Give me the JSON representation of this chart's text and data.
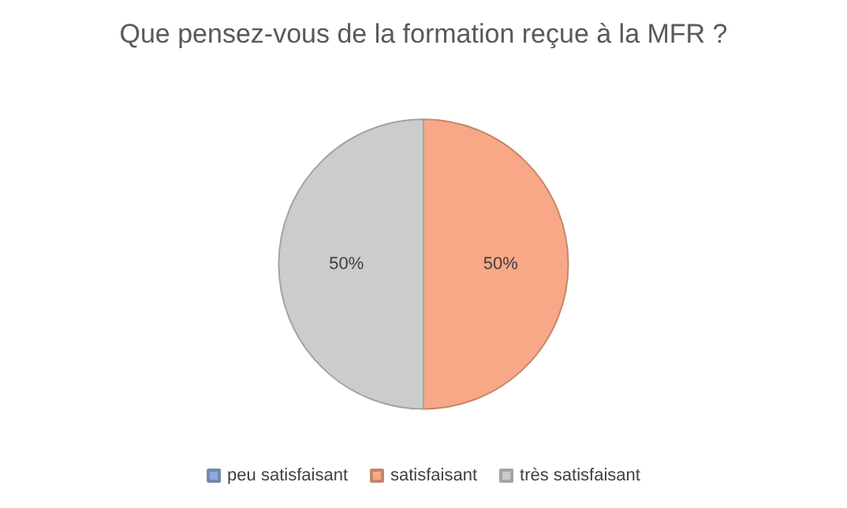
{
  "chart_data": {
    "type": "pie",
    "title": "Que pensez-vous de la formation reçue à la MFR ?",
    "categories": [
      "peu satisfaisant",
      "satisfaisant",
      "très satisfaisant"
    ],
    "values": [
      0,
      50,
      50
    ],
    "colors": [
      "#8faadc",
      "#f8a886",
      "#cccccc"
    ],
    "value_labels": [
      null,
      "50%",
      "50%"
    ],
    "legend": "bottom"
  }
}
